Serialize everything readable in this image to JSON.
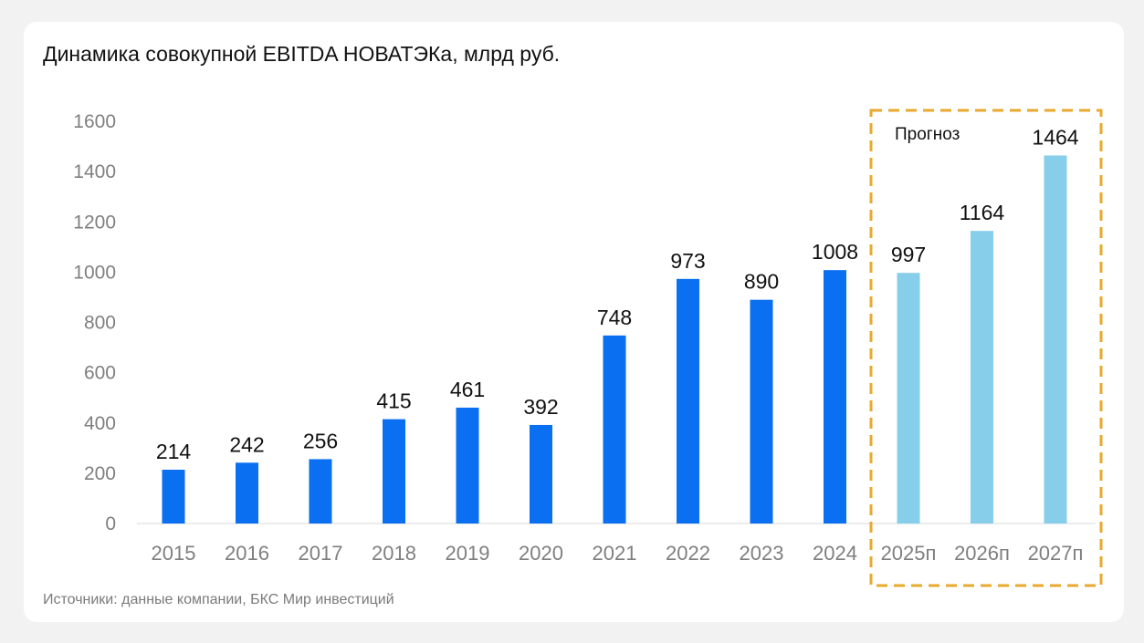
{
  "title": "Динамика совокупной EBITDA НОВАТЭКа, млрд руб.",
  "source": "Источники: данные компании, БКС Мир инвестиций",
  "chart_data": {
    "type": "bar",
    "title": "Динамика совокупной EBITDA НОВАТЭКа, млрд руб.",
    "categories": [
      "2015",
      "2016",
      "2017",
      "2018",
      "2019",
      "2020",
      "2021",
      "2022",
      "2023",
      "2024",
      "2025п",
      "2026п",
      "2027п"
    ],
    "values": [
      214,
      242,
      256,
      415,
      461,
      392,
      748,
      973,
      890,
      1008,
      997,
      1164,
      1464
    ],
    "forecast_start_index": 10,
    "forecast_label": "Прогноз",
    "yticks": [
      0,
      200,
      400,
      600,
      800,
      1000,
      1200,
      1400,
      1600
    ],
    "ylim": [
      0,
      1600
    ],
    "xlabel": "",
    "ylabel": "",
    "grid": false,
    "legend": "none",
    "colors": {
      "actual": "#0a6ff0",
      "forecast": "#87ceeb",
      "forecast_box": "#e8a92e"
    }
  }
}
